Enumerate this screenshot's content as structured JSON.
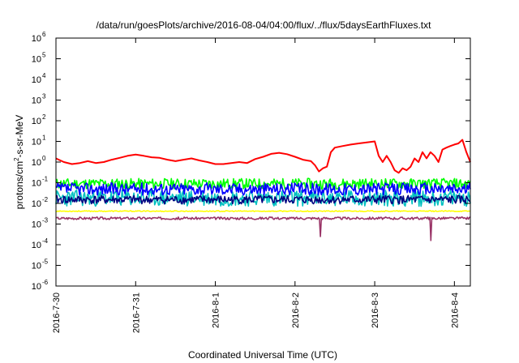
{
  "chart_data": {
    "type": "line",
    "title": "/data/run/goesPlots/archive/2016-08-04/04:00/flux/../flux/5daysEarthFluxes.txt",
    "xlabel": "Coordinated Universal Time (UTC)",
    "ylabel": {
      "pre": "protons/cm",
      "sup": "2",
      "post": "-s-sr-MeV"
    },
    "yscale": "log",
    "ylim": [
      1e-06,
      1000000.0
    ],
    "y_ticks": [
      {
        "base": "10",
        "exp": "-6"
      },
      {
        "base": "10",
        "exp": "-5"
      },
      {
        "base": "10",
        "exp": "-4"
      },
      {
        "base": "10",
        "exp": "-3"
      },
      {
        "base": "10",
        "exp": "-2"
      },
      {
        "base": "10",
        "exp": "-1"
      },
      {
        "base": "10",
        "exp": "0"
      },
      {
        "base": "10",
        "exp": "1"
      },
      {
        "base": "10",
        "exp": "2"
      },
      {
        "base": "10",
        "exp": "3"
      },
      {
        "base": "10",
        "exp": "4"
      },
      {
        "base": "10",
        "exp": "5"
      },
      {
        "base": "10",
        "exp": "6"
      }
    ],
    "x_ticks": [
      "2016-7-30",
      "2016-7-31",
      "2016-8-1",
      "2016-8-2",
      "2016-8-3",
      "2016-8-4"
    ],
    "xlim_days": [
      0,
      5.2
    ],
    "grid": false,
    "legend": "none",
    "series": [
      {
        "color": "#ff0000",
        "points": [
          [
            0.0,
            1.5
          ],
          [
            0.1,
            1.0
          ],
          [
            0.2,
            0.8
          ],
          [
            0.3,
            0.9
          ],
          [
            0.4,
            1.1
          ],
          [
            0.5,
            0.9
          ],
          [
            0.6,
            1.0
          ],
          [
            0.7,
            1.3
          ],
          [
            0.8,
            1.6
          ],
          [
            0.9,
            2.0
          ],
          [
            1.0,
            2.3
          ],
          [
            1.1,
            2.0
          ],
          [
            1.2,
            1.7
          ],
          [
            1.3,
            1.6
          ],
          [
            1.4,
            1.3
          ],
          [
            1.5,
            1.1
          ],
          [
            1.6,
            1.3
          ],
          [
            1.7,
            1.5
          ],
          [
            1.8,
            1.2
          ],
          [
            1.9,
            1.0
          ],
          [
            2.0,
            0.8
          ],
          [
            2.1,
            0.8
          ],
          [
            2.2,
            0.9
          ],
          [
            2.3,
            1.0
          ],
          [
            2.4,
            0.9
          ],
          [
            2.5,
            1.4
          ],
          [
            2.6,
            1.8
          ],
          [
            2.7,
            2.5
          ],
          [
            2.8,
            2.8
          ],
          [
            2.9,
            2.4
          ],
          [
            3.0,
            1.8
          ],
          [
            3.1,
            1.3
          ],
          [
            3.2,
            1.1
          ],
          [
            3.25,
            0.7
          ],
          [
            3.3,
            0.35
          ],
          [
            3.35,
            0.5
          ],
          [
            3.4,
            0.6
          ],
          [
            3.45,
            3.0
          ],
          [
            3.5,
            5.0
          ],
          [
            3.6,
            6.0
          ],
          [
            3.7,
            7.0
          ],
          [
            3.8,
            8.0
          ],
          [
            3.9,
            9.0
          ],
          [
            4.0,
            10.0
          ],
          [
            4.05,
            2.0
          ],
          [
            4.1,
            1.0
          ],
          [
            4.15,
            2.0
          ],
          [
            4.2,
            1.0
          ],
          [
            4.25,
            0.4
          ],
          [
            4.3,
            0.3
          ],
          [
            4.35,
            0.5
          ],
          [
            4.4,
            0.4
          ],
          [
            4.45,
            0.6
          ],
          [
            4.5,
            1.5
          ],
          [
            4.55,
            1.0
          ],
          [
            4.6,
            3.0
          ],
          [
            4.65,
            1.5
          ],
          [
            4.7,
            3.0
          ],
          [
            4.75,
            2.0
          ],
          [
            4.8,
            1.0
          ],
          [
            4.85,
            4.0
          ],
          [
            4.9,
            5.0
          ],
          [
            4.95,
            6.0
          ],
          [
            5.0,
            7.0
          ],
          [
            5.05,
            8.0
          ],
          [
            5.1,
            12.0
          ],
          [
            5.15,
            3.0
          ],
          [
            5.2,
            1.0
          ]
        ]
      },
      {
        "color": "#00ff00",
        "base": 0.09,
        "jitter": 1.8,
        "seed": 11
      },
      {
        "color": "#00c0c0",
        "base": 0.018,
        "jitter": 2.5,
        "seed": 23
      },
      {
        "color": "#0000ff",
        "base": 0.05,
        "jitter": 2.0,
        "seed": 37
      },
      {
        "color": "#000080",
        "base": 0.015,
        "jitter": 1.6,
        "seed": 41
      },
      {
        "color": "#ffff00",
        "base": 0.0042,
        "jitter": 1.05,
        "seed": 53
      },
      {
        "color": "#993366",
        "base": 0.0019,
        "jitter": 1.15,
        "seed": 67,
        "dips": [
          [
            3.32,
            0.00025
          ],
          [
            4.7,
            0.00016
          ]
        ]
      }
    ]
  }
}
